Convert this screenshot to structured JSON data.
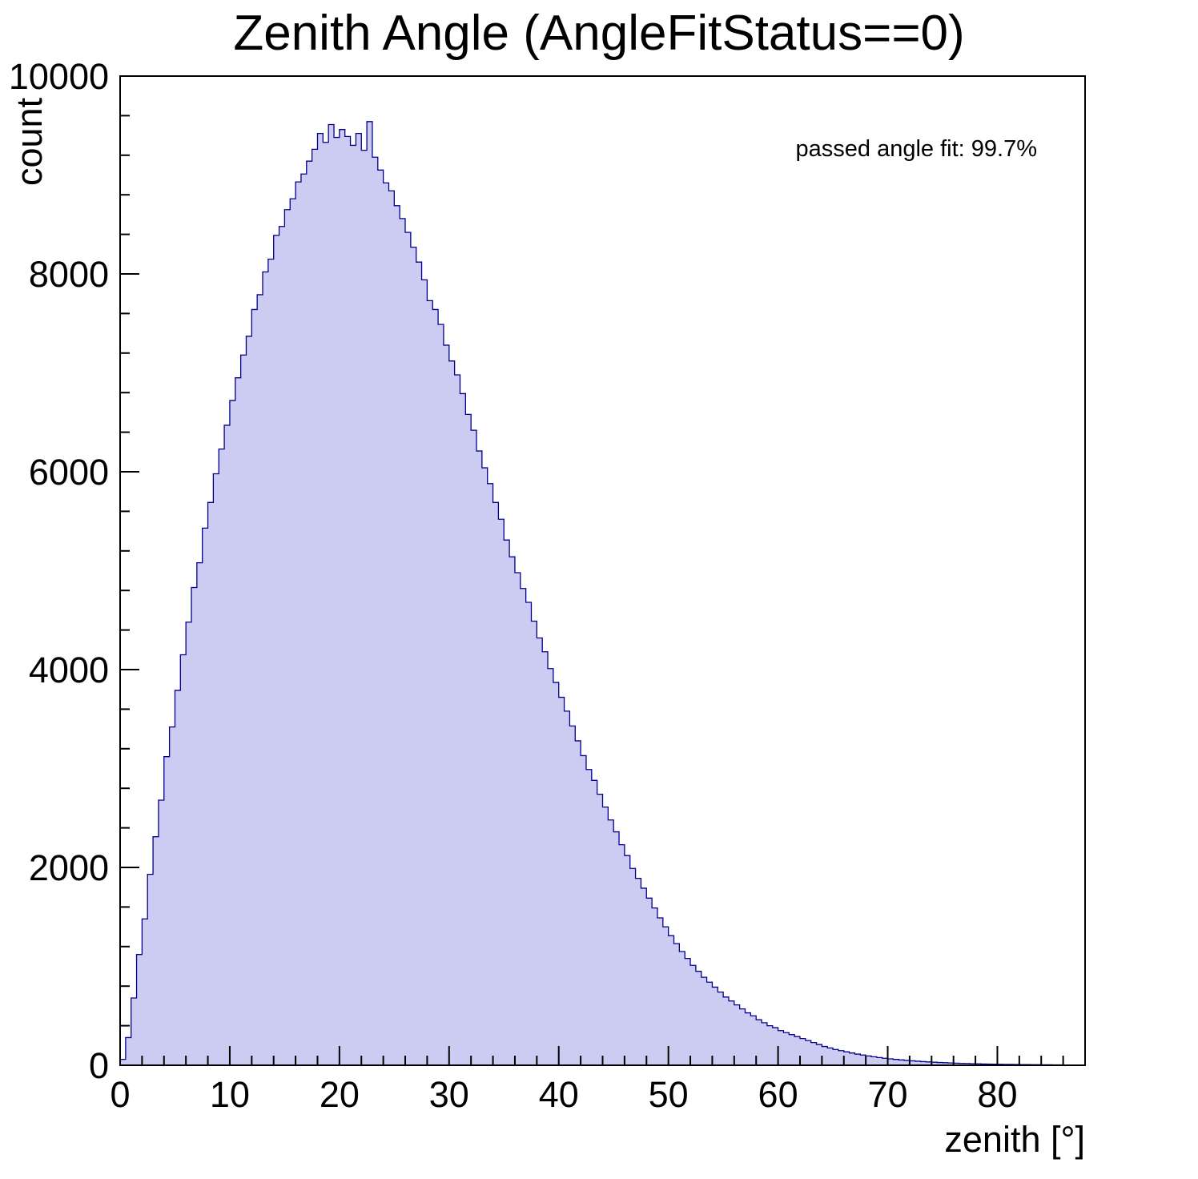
{
  "title": "Zenith Angle (AngleFitStatus==0)",
  "annotation": "passed angle fit: 99.7%",
  "chart_data": {
    "type": "histogram",
    "title": "Zenith Angle (AngleFitStatus==0)",
    "xlabel": "zenith [°]",
    "ylabel": "count",
    "xlim": [
      0,
      88
    ],
    "ylim": [
      0,
      10000
    ],
    "x_ticks": [
      0,
      10,
      20,
      30,
      40,
      50,
      60,
      70,
      80
    ],
    "y_ticks": [
      0,
      2000,
      4000,
      6000,
      8000,
      10000
    ],
    "x_minor_step": 2,
    "y_minor_step": 400,
    "bin_start": 0,
    "bin_width": 0.5,
    "fill_color": "#ccccf2",
    "line_color": "#00008b",
    "annotation": "passed angle fit: 99.7%",
    "values": [
      60,
      280,
      680,
      1120,
      1480,
      1930,
      2310,
      2680,
      3120,
      3420,
      3790,
      4150,
      4480,
      4830,
      5080,
      5430,
      5690,
      5980,
      6230,
      6470,
      6720,
      6950,
      7180,
      7370,
      7640,
      7790,
      8020,
      8150,
      8390,
      8480,
      8650,
      8760,
      8930,
      9010,
      9140,
      9260,
      9420,
      9330,
      9510,
      9380,
      9460,
      9390,
      9300,
      9420,
      9250,
      9540,
      9180,
      9050,
      8920,
      8840,
      8690,
      8560,
      8420,
      8270,
      8120,
      7940,
      7730,
      7640,
      7490,
      7280,
      7120,
      6980,
      6790,
      6580,
      6420,
      6210,
      6040,
      5880,
      5690,
      5520,
      5310,
      5140,
      4980,
      4820,
      4680,
      4490,
      4320,
      4180,
      4010,
      3870,
      3720,
      3580,
      3430,
      3280,
      3130,
      2990,
      2880,
      2740,
      2610,
      2480,
      2360,
      2230,
      2120,
      1990,
      1890,
      1790,
      1690,
      1590,
      1490,
      1400,
      1310,
      1230,
      1150,
      1080,
      1010,
      950,
      890,
      840,
      790,
      740,
      690,
      650,
      610,
      570,
      530,
      500,
      460,
      430,
      400,
      380,
      350,
      330,
      310,
      290,
      270,
      250,
      230,
      210,
      190,
      175,
      160,
      148,
      136,
      124,
      113,
      103,
      94,
      86,
      78,
      71,
      65,
      59,
      54,
      49,
      45,
      41,
      37,
      34,
      31,
      28,
      26,
      23,
      21,
      19,
      18,
      16,
      15,
      13,
      12,
      11,
      10,
      9,
      9,
      8,
      7,
      7,
      6,
      6,
      5,
      5,
      4,
      4,
      3,
      3,
      3,
      2
    ]
  }
}
